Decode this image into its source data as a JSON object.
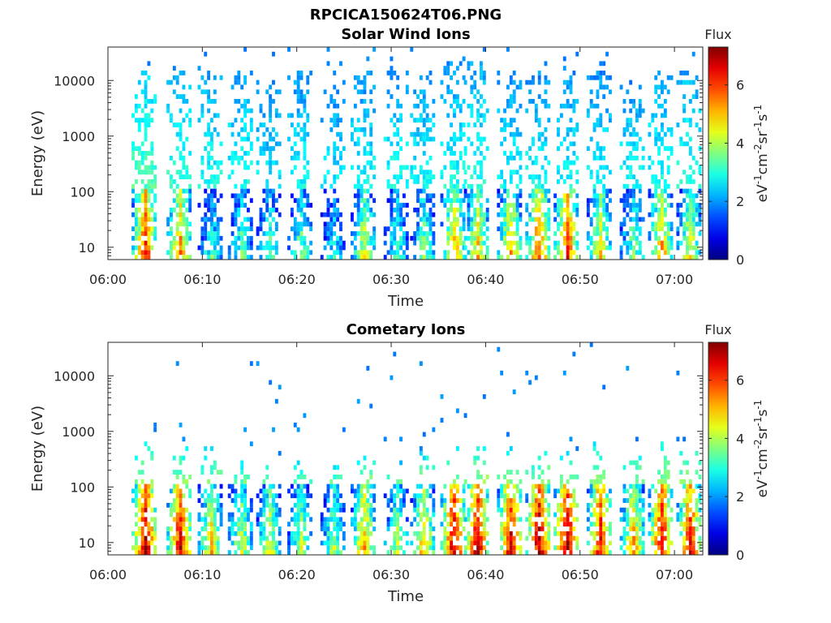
{
  "figure_title": "RPCICA150624T06.PNG",
  "chart_data": [
    {
      "type": "heatmap",
      "title": "Solar Wind Ions",
      "xlabel": "Time",
      "ylabel": "Energy (eV)",
      "x_ticks": [
        "06:00",
        "06:10",
        "06:20",
        "06:30",
        "06:40",
        "06:50",
        "07:00"
      ],
      "x_range": [
        "06:00",
        "07:03"
      ],
      "y_scale": "log",
      "y_ticks": [
        "10",
        "100",
        "1000",
        "10000"
      ],
      "y_range": [
        6,
        40000
      ],
      "colorbar": {
        "label": "Flux",
        "units": "eV-1cm-2sr-1s-1",
        "ticks": [
          "0",
          "2",
          "4",
          "6"
        ],
        "range": [
          0,
          7.3
        ],
        "colormap": "jet"
      },
      "bursts": [
        {
          "t": "06:03.8",
          "low_flux": 6.1,
          "high_flux": 2.4,
          "high_top_eV": 15000
        },
        {
          "t": "06:07.5",
          "low_flux": 5.3,
          "high_flux": 2.2,
          "high_top_eV": 15000
        },
        {
          "t": "06:10.8",
          "low_flux": 3.0,
          "high_flux": 2.0,
          "high_top_eV": 15000
        },
        {
          "t": "06:14.0",
          "low_flux": 3.2,
          "high_flux": 2.0,
          "high_top_eV": 15000
        },
        {
          "t": "06:17.0",
          "low_flux": 3.3,
          "high_flux": 1.8,
          "high_top_eV": 10000
        },
        {
          "t": "06:20.3",
          "low_flux": 3.5,
          "high_flux": 1.9,
          "high_top_eV": 15000
        },
        {
          "t": "06:23.8",
          "low_flux": 2.8,
          "high_flux": 1.8,
          "high_top_eV": 10000
        },
        {
          "t": "06:27.0",
          "low_flux": 4.2,
          "high_flux": 1.9,
          "high_top_eV": 15000
        },
        {
          "t": "06:30.5",
          "low_flux": 3.2,
          "high_flux": 2.0,
          "high_top_eV": 15000
        },
        {
          "t": "06:33.3",
          "low_flux": 3.6,
          "high_flux": 1.9,
          "high_top_eV": 15000
        },
        {
          "t": "06:36.5",
          "low_flux": 5.1,
          "high_flux": 2.0,
          "high_top_eV": 20000
        },
        {
          "t": "06:39.0",
          "low_flux": 4.8,
          "high_flux": 2.1,
          "high_top_eV": 20000
        },
        {
          "t": "06:42.5",
          "low_flux": 5.0,
          "high_flux": 1.9,
          "high_top_eV": 15000
        },
        {
          "t": "06:45.5",
          "low_flux": 5.8,
          "high_flux": 1.9,
          "high_top_eV": 15000
        },
        {
          "t": "06:48.5",
          "low_flux": 6.0,
          "high_flux": 1.9,
          "high_top_eV": 15000
        },
        {
          "t": "06:52.0",
          "low_flux": 4.6,
          "high_flux": 1.9,
          "high_top_eV": 15000
        },
        {
          "t": "06:55.5",
          "low_flux": 3.6,
          "high_flux": 1.9,
          "high_top_eV": 10000
        },
        {
          "t": "06:58.5",
          "low_flux": 5.2,
          "high_flux": 2.0,
          "high_top_eV": 15000
        },
        {
          "t": "07:01.5",
          "low_flux": 4.5,
          "high_flux": 2.1,
          "high_top_eV": 15000
        }
      ]
    },
    {
      "type": "heatmap",
      "title": "Cometary Ions",
      "xlabel": "Time",
      "ylabel": "Energy (eV)",
      "x_ticks": [
        "06:00",
        "06:10",
        "06:20",
        "06:30",
        "06:40",
        "06:50",
        "07:00"
      ],
      "x_range": [
        "06:00",
        "07:03"
      ],
      "y_scale": "log",
      "y_ticks": [
        "10",
        "100",
        "1000",
        "10000"
      ],
      "y_range": [
        6,
        40000
      ],
      "colorbar": {
        "label": "Flux",
        "units": "eV-1cm-2sr-1s-1",
        "ticks": [
          "0",
          "2",
          "4",
          "6"
        ],
        "range": [
          0,
          7.3
        ],
        "colormap": "jet"
      },
      "bursts": [
        {
          "t": "06:03.8",
          "low_flux": 7.0,
          "high_flux": 2.6,
          "high_top_eV": 600
        },
        {
          "t": "06:07.5",
          "low_flux": 6.6,
          "high_flux": 2.6,
          "high_top_eV": 500
        },
        {
          "t": "06:10.8",
          "low_flux": 4.8,
          "high_flux": 2.5,
          "high_top_eV": 500
        },
        {
          "t": "06:14.0",
          "low_flux": 4.2,
          "high_flux": 2.4,
          "high_top_eV": 300
        },
        {
          "t": "06:17.0",
          "low_flux": 4.3,
          "high_flux": 2.4,
          "high_top_eV": 300
        },
        {
          "t": "06:20.3",
          "low_flux": 4.0,
          "high_flux": 2.3,
          "high_top_eV": 250
        },
        {
          "t": "06:23.8",
          "low_flux": 3.8,
          "high_flux": 2.3,
          "high_top_eV": 250
        },
        {
          "t": "06:27.0",
          "low_flux": 5.2,
          "high_flux": 2.5,
          "high_top_eV": 400
        },
        {
          "t": "06:30.5",
          "low_flux": 4.0,
          "high_flux": 2.4,
          "high_top_eV": 250
        },
        {
          "t": "06:33.3",
          "low_flux": 5.0,
          "high_flux": 2.5,
          "high_top_eV": 400
        },
        {
          "t": "06:36.5",
          "low_flux": 6.8,
          "high_flux": 2.7,
          "high_top_eV": 600
        },
        {
          "t": "06:39.0",
          "low_flux": 6.8,
          "high_flux": 2.7,
          "high_top_eV": 600
        },
        {
          "t": "06:42.5",
          "low_flux": 6.7,
          "high_flux": 2.6,
          "high_top_eV": 500
        },
        {
          "t": "06:45.5",
          "low_flux": 7.0,
          "high_flux": 2.6,
          "high_top_eV": 500
        },
        {
          "t": "06:48.5",
          "low_flux": 7.1,
          "high_flux": 2.6,
          "high_top_eV": 400
        },
        {
          "t": "06:52.0",
          "low_flux": 6.4,
          "high_flux": 2.7,
          "high_top_eV": 600
        },
        {
          "t": "06:55.5",
          "low_flux": 5.2,
          "high_flux": 2.5,
          "high_top_eV": 500
        },
        {
          "t": "06:58.5",
          "low_flux": 6.6,
          "high_flux": 2.6,
          "high_top_eV": 700
        },
        {
          "t": "07:01.5",
          "low_flux": 6.4,
          "high_flux": 2.6,
          "high_top_eV": 600
        }
      ]
    }
  ]
}
